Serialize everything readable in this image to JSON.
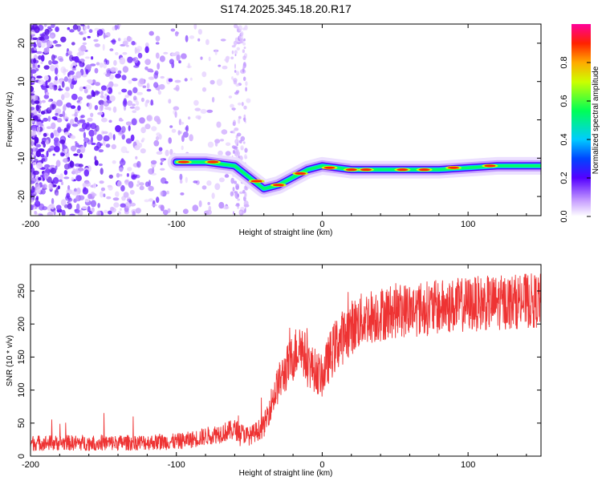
{
  "title": "S174.2025.345.18.20.R17",
  "chart_data": [
    {
      "type": "heatmap",
      "title": "S174.2025.345.18.20.R17",
      "xlabel": "Height of straight line (km)",
      "ylabel": "Frequency (Hz)",
      "xlim": [
        -200,
        150
      ],
      "ylim": [
        -25,
        25
      ],
      "xticks": [
        "-200",
        "-100",
        "0",
        "100"
      ],
      "yticks": [
        "20",
        "10",
        "0",
        "-10",
        "-20"
      ],
      "colorbar": {
        "label": "Normalized spectral amplitude",
        "range": [
          0.0,
          1.0
        ],
        "ticks": [
          "0.0",
          "0.2",
          "0.4",
          "0.6",
          "0.8"
        ]
      },
      "ridge": {
        "description": "dominant frequency track",
        "points": [
          {
            "x": -100,
            "y": -11
          },
          {
            "x": -80,
            "y": -11
          },
          {
            "x": -60,
            "y": -12
          },
          {
            "x": -50,
            "y": -15
          },
          {
            "x": -40,
            "y": -18
          },
          {
            "x": -30,
            "y": -17
          },
          {
            "x": -20,
            "y": -15
          },
          {
            "x": -10,
            "y": -13
          },
          {
            "x": 0,
            "y": -12
          },
          {
            "x": 20,
            "y": -13
          },
          {
            "x": 50,
            "y": -13
          },
          {
            "x": 80,
            "y": -13
          },
          {
            "x": 100,
            "y": -12.5
          },
          {
            "x": 120,
            "y": -12
          },
          {
            "x": 150,
            "y": -12
          }
        ]
      }
    },
    {
      "type": "line",
      "xlabel": "Height of straight line (km)",
      "ylabel": "SNR (10 * v/v)",
      "xlim": [
        -200,
        150
      ],
      "ylim": [
        0,
        290
      ],
      "xticks": [
        "-200",
        "-100",
        "0",
        "100"
      ],
      "yticks": [
        "0",
        "50",
        "100",
        "150",
        "200",
        "250"
      ],
      "series": [
        {
          "name": "SNR",
          "color": "#ee3333",
          "x": [
            -200,
            -180,
            -160,
            -140,
            -120,
            -100,
            -90,
            -80,
            -70,
            -60,
            -50,
            -40,
            -35,
            -30,
            -25,
            -20,
            -15,
            -10,
            -5,
            0,
            5,
            10,
            20,
            30,
            40,
            50,
            60,
            80,
            100,
            120,
            140,
            150
          ],
          "y": [
            20,
            20,
            20,
            20,
            21,
            22,
            25,
            30,
            35,
            40,
            30,
            45,
            80,
            110,
            130,
            150,
            170,
            140,
            130,
            120,
            150,
            170,
            195,
            210,
            215,
            220,
            222,
            225,
            230,
            232,
            235,
            235
          ],
          "noise_amplitude": 12
        }
      ]
    }
  ]
}
